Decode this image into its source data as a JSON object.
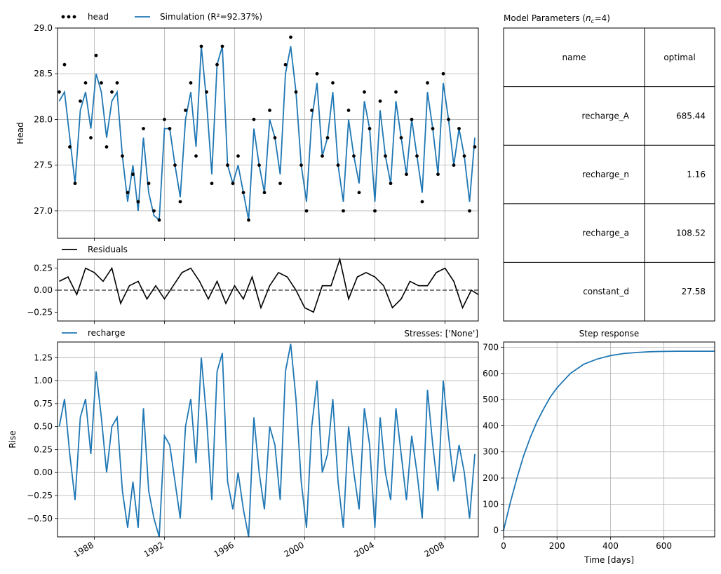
{
  "colors": {
    "sim": "#1f77b4",
    "obs": "#000000",
    "resid": "#000000",
    "recharge": "#1f77b4",
    "step": "#1f77b4",
    "grid": "#b0b0b0"
  },
  "head_panel": {
    "ylabel": "Head",
    "legend": [
      {
        "name": "head",
        "marker": "dots"
      },
      {
        "name": "Simulation (R²=92.37%)",
        "marker": "line"
      }
    ],
    "ylim": [
      26.7,
      29.0
    ],
    "yticks": [
      "29.0",
      "28.5",
      "28.0",
      "27.5",
      "27.0"
    ],
    "ytick_values": [
      29.0,
      28.5,
      28.0,
      27.5,
      27.0
    ]
  },
  "resid_panel": {
    "legend": [
      {
        "name": "Residuals"
      }
    ],
    "ylim": [
      -0.35,
      0.35
    ],
    "yticks": [
      "0.25",
      "0.00",
      "−0.25"
    ],
    "ytick_values": [
      0.25,
      0.0,
      -0.25
    ]
  },
  "recharge_panel": {
    "ylabel": "Rise",
    "legend": [
      {
        "name": "recharge"
      }
    ],
    "right_title": "Stresses: ['None']",
    "ylim": [
      -0.7,
      1.42
    ],
    "yticks": [
      "1.25",
      "1.00",
      "0.75",
      "0.50",
      "0.25",
      "0.00",
      "−0.25",
      "−0.50"
    ],
    "ytick_values": [
      1.25,
      1.0,
      0.75,
      0.5,
      0.25,
      0.0,
      -0.25,
      -0.5
    ]
  },
  "time_axis": {
    "xlim": [
      1985.9,
      2009.9
    ],
    "xticks": [
      "1988",
      "1992",
      "1996",
      "2000",
      "2004",
      "2008"
    ],
    "xtick_values": [
      1988,
      1992,
      1996,
      2000,
      2004,
      2008
    ]
  },
  "params_table": {
    "title": "Model Parameters (",
    "title_sub": "n",
    "title_subscript": "c",
    "title_tail": "=4)",
    "headers": [
      "name",
      "optimal"
    ],
    "rows": [
      {
        "name": "recharge_A",
        "optimal": "685.44"
      },
      {
        "name": "recharge_n",
        "optimal": "1.16"
      },
      {
        "name": "recharge_a",
        "optimal": "108.52"
      },
      {
        "name": "constant_d",
        "optimal": "27.58"
      }
    ]
  },
  "step_panel": {
    "title": "Step response",
    "xlabel": "Time [days]",
    "xlim": [
      0,
      790
    ],
    "ylim": [
      -25,
      720
    ],
    "xticks": [
      "0",
      "200",
      "400",
      "600"
    ],
    "xtick_values": [
      0,
      200,
      400,
      600
    ],
    "yticks": [
      "700",
      "600",
      "500",
      "400",
      "300",
      "200",
      "100",
      "0"
    ],
    "ytick_values": [
      700,
      600,
      500,
      400,
      300,
      200,
      100,
      0
    ]
  },
  "chart_data": [
    {
      "type": "line",
      "title": "",
      "xlabel": "",
      "ylabel": "Head",
      "ylim": [
        26.7,
        29.0
      ],
      "series": [
        {
          "name": "head",
          "style": "scatter",
          "x": [
            1986.0,
            1986.3,
            1986.6,
            1986.9,
            1987.2,
            1987.5,
            1987.8,
            1988.1,
            1988.4,
            1988.7,
            1989.0,
            1989.3,
            1989.6,
            1989.9,
            1990.2,
            1990.5,
            1990.8,
            1991.1,
            1991.4,
            1991.7,
            1992.0,
            1992.3,
            1992.6,
            1992.9,
            1993.2,
            1993.5,
            1993.8,
            1994.1,
            1994.4,
            1994.7,
            1995.0,
            1995.3,
            1995.6,
            1995.9,
            1996.2,
            1996.5,
            1996.8,
            1997.1,
            1997.4,
            1997.7,
            1998.0,
            1998.3,
            1998.6,
            1998.9,
            1999.2,
            1999.5,
            1999.8,
            2000.1,
            2000.4,
            2000.7,
            2001.0,
            2001.3,
            2001.6,
            2001.9,
            2002.2,
            2002.5,
            2002.8,
            2003.1,
            2003.4,
            2003.7,
            2004.0,
            2004.3,
            2004.6,
            2004.9,
            2005.2,
            2005.5,
            2005.8,
            2006.1,
            2006.4,
            2006.7,
            2007.0,
            2007.3,
            2007.6,
            2007.9,
            2008.2,
            2008.5,
            2008.8,
            2009.1,
            2009.4,
            2009.7
          ],
          "y": [
            28.3,
            28.6,
            27.7,
            27.3,
            28.2,
            28.4,
            27.8,
            28.7,
            28.4,
            27.7,
            28.3,
            28.4,
            27.6,
            27.2,
            27.4,
            27.1,
            27.9,
            27.3,
            27.0,
            26.9,
            28.0,
            27.9,
            27.5,
            27.1,
            28.1,
            28.4,
            27.6,
            28.8,
            28.3,
            27.3,
            28.6,
            28.8,
            27.5,
            27.3,
            27.6,
            27.2,
            26.9,
            28.0,
            27.5,
            27.2,
            28.1,
            27.8,
            27.3,
            28.6,
            28.9,
            28.3,
            27.5,
            27.0,
            28.1,
            28.5,
            27.6,
            27.8,
            28.4,
            27.5,
            27.0,
            28.1,
            27.6,
            27.2,
            28.3,
            27.9,
            27.0,
            28.2,
            27.6,
            27.3,
            28.3,
            27.8,
            27.4,
            28.0,
            27.6,
            27.1,
            28.4,
            27.9,
            27.4,
            28.5,
            28.0,
            27.5,
            27.9,
            27.6,
            27.0,
            27.7
          ]
        },
        {
          "name": "Simulation (R²=92.37%)",
          "style": "line",
          "x": [
            1986.0,
            1986.3,
            1986.6,
            1986.9,
            1987.2,
            1987.5,
            1987.8,
            1988.1,
            1988.4,
            1988.7,
            1989.0,
            1989.3,
            1989.6,
            1989.9,
            1990.2,
            1990.5,
            1990.8,
            1991.1,
            1991.4,
            1991.7,
            1992.0,
            1992.3,
            1992.6,
            1992.9,
            1993.2,
            1993.5,
            1993.8,
            1994.1,
            1994.4,
            1994.7,
            1995.0,
            1995.3,
            1995.6,
            1995.9,
            1996.2,
            1996.5,
            1996.8,
            1997.1,
            1997.4,
            1997.7,
            1998.0,
            1998.3,
            1998.6,
            1998.9,
            1999.2,
            1999.5,
            1999.8,
            2000.1,
            2000.4,
            2000.7,
            2001.0,
            2001.3,
            2001.6,
            2001.9,
            2002.2,
            2002.5,
            2002.8,
            2003.1,
            2003.4,
            2003.7,
            2004.0,
            2004.3,
            2004.6,
            2004.9,
            2005.2,
            2005.5,
            2005.8,
            2006.1,
            2006.4,
            2006.7,
            2007.0,
            2007.3,
            2007.6,
            2007.9,
            2008.2,
            2008.5,
            2008.8,
            2009.1,
            2009.4,
            2009.7
          ],
          "y": [
            28.2,
            28.3,
            27.8,
            27.3,
            28.1,
            28.3,
            27.9,
            28.5,
            28.3,
            27.8,
            28.2,
            28.3,
            27.6,
            27.1,
            27.5,
            27.0,
            27.8,
            27.2,
            26.95,
            26.9,
            27.9,
            27.9,
            27.5,
            27.15,
            28.0,
            28.3,
            27.7,
            28.8,
            28.2,
            27.4,
            28.6,
            28.8,
            27.5,
            27.3,
            27.5,
            27.2,
            26.9,
            27.9,
            27.5,
            27.2,
            28.0,
            27.8,
            27.4,
            28.5,
            28.8,
            28.3,
            27.5,
            27.1,
            28.0,
            28.4,
            27.6,
            27.8,
            28.3,
            27.5,
            27.1,
            28.0,
            27.6,
            27.3,
            28.2,
            27.9,
            27.1,
            28.1,
            27.6,
            27.3,
            28.2,
            27.8,
            27.4,
            28.0,
            27.6,
            27.2,
            28.3,
            27.9,
            27.4,
            28.4,
            28.0,
            27.5,
            27.9,
            27.6,
            27.1,
            27.8
          ]
        }
      ]
    },
    {
      "type": "line",
      "title": "",
      "ylim": [
        -0.35,
        0.35
      ],
      "series": [
        {
          "name": "Residuals",
          "x": [
            1986.0,
            1986.5,
            1987.0,
            1987.5,
            1988.0,
            1988.5,
            1989.0,
            1989.5,
            1990.0,
            1990.5,
            1991.0,
            1991.5,
            1992.0,
            1992.5,
            1993.0,
            1993.5,
            1994.0,
            1994.5,
            1995.0,
            1995.5,
            1996.0,
            1996.5,
            1997.0,
            1997.5,
            1998.0,
            1998.5,
            1999.0,
            1999.5,
            2000.0,
            2000.5,
            2001.0,
            2001.5,
            2002.0,
            2002.5,
            2003.0,
            2003.5,
            2004.0,
            2004.5,
            2005.0,
            2005.5,
            2006.0,
            2006.5,
            2007.0,
            2007.5,
            2008.0,
            2008.5,
            2009.0,
            2009.5,
            2009.9
          ],
          "y": [
            0.1,
            0.15,
            -0.05,
            0.25,
            0.2,
            0.1,
            0.25,
            -0.15,
            0.05,
            0.1,
            -0.1,
            0.05,
            -0.1,
            0.05,
            0.2,
            0.25,
            0.1,
            -0.1,
            0.1,
            -0.15,
            0.05,
            -0.1,
            0.15,
            -0.2,
            0.05,
            0.2,
            0.15,
            0.0,
            -0.2,
            -0.25,
            0.05,
            0.05,
            0.35,
            -0.1,
            0.15,
            0.2,
            0.15,
            0.05,
            -0.2,
            -0.1,
            0.1,
            0.05,
            0.05,
            0.2,
            0.25,
            0.1,
            -0.2,
            0.0,
            -0.05
          ]
        }
      ]
    },
    {
      "type": "line",
      "title": "",
      "ylabel": "Rise",
      "ylim": [
        -0.7,
        1.42
      ],
      "series": [
        {
          "name": "recharge",
          "x": [
            1986.0,
            1986.3,
            1986.6,
            1986.9,
            1987.2,
            1987.5,
            1987.8,
            1988.1,
            1988.4,
            1988.7,
            1989.0,
            1989.3,
            1989.6,
            1989.9,
            1990.2,
            1990.5,
            1990.8,
            1991.1,
            1991.4,
            1991.7,
            1992.0,
            1992.3,
            1992.6,
            1992.9,
            1993.2,
            1993.5,
            1993.8,
            1994.1,
            1994.4,
            1994.7,
            1995.0,
            1995.3,
            1995.6,
            1995.9,
            1996.2,
            1996.5,
            1996.8,
            1997.1,
            1997.4,
            1997.7,
            1998.0,
            1998.3,
            1998.6,
            1998.9,
            1999.2,
            1999.5,
            1999.8,
            2000.1,
            2000.4,
            2000.7,
            2001.0,
            2001.3,
            2001.6,
            2001.9,
            2002.2,
            2002.5,
            2002.8,
            2003.1,
            2003.4,
            2003.7,
            2004.0,
            2004.3,
            2004.6,
            2004.9,
            2005.2,
            2005.5,
            2005.8,
            2006.1,
            2006.4,
            2006.7,
            2007.0,
            2007.3,
            2007.6,
            2007.9,
            2008.2,
            2008.5,
            2008.8,
            2009.1,
            2009.4,
            2009.7
          ],
          "y": [
            0.5,
            0.8,
            0.2,
            -0.3,
            0.6,
            0.8,
            0.2,
            1.1,
            0.6,
            0.0,
            0.5,
            0.6,
            -0.2,
            -0.6,
            -0.1,
            -0.6,
            0.7,
            -0.2,
            -0.5,
            -0.7,
            0.4,
            0.3,
            -0.1,
            -0.5,
            0.5,
            0.8,
            0.1,
            1.25,
            0.6,
            -0.3,
            1.1,
            1.3,
            -0.1,
            -0.4,
            0.0,
            -0.4,
            -0.7,
            0.6,
            0.0,
            -0.4,
            0.5,
            0.3,
            -0.3,
            1.1,
            1.4,
            0.8,
            -0.1,
            -0.6,
            0.5,
            1.0,
            0.0,
            0.2,
            0.8,
            -0.1,
            -0.6,
            0.5,
            0.0,
            -0.4,
            0.7,
            0.3,
            -0.6,
            0.6,
            0.0,
            -0.3,
            0.7,
            0.2,
            -0.3,
            0.4,
            0.0,
            -0.5,
            0.9,
            0.3,
            -0.2,
            1.0,
            0.4,
            -0.1,
            0.3,
            0.0,
            -0.5,
            0.2
          ]
        }
      ]
    },
    {
      "type": "line",
      "title": "Step response",
      "xlabel": "Time [days]",
      "xlim": [
        0,
        790
      ],
      "ylim": [
        -25,
        720
      ],
      "series": [
        {
          "name": "",
          "x": [
            0,
            25,
            50,
            75,
            100,
            125,
            150,
            175,
            200,
            250,
            300,
            350,
            400,
            450,
            500,
            550,
            600,
            650,
            700,
            750,
            790
          ],
          "y": [
            0,
            105,
            200,
            285,
            355,
            415,
            465,
            510,
            545,
            600,
            635,
            655,
            668,
            676,
            680,
            683,
            684,
            685,
            685,
            685,
            685
          ]
        }
      ]
    }
  ]
}
